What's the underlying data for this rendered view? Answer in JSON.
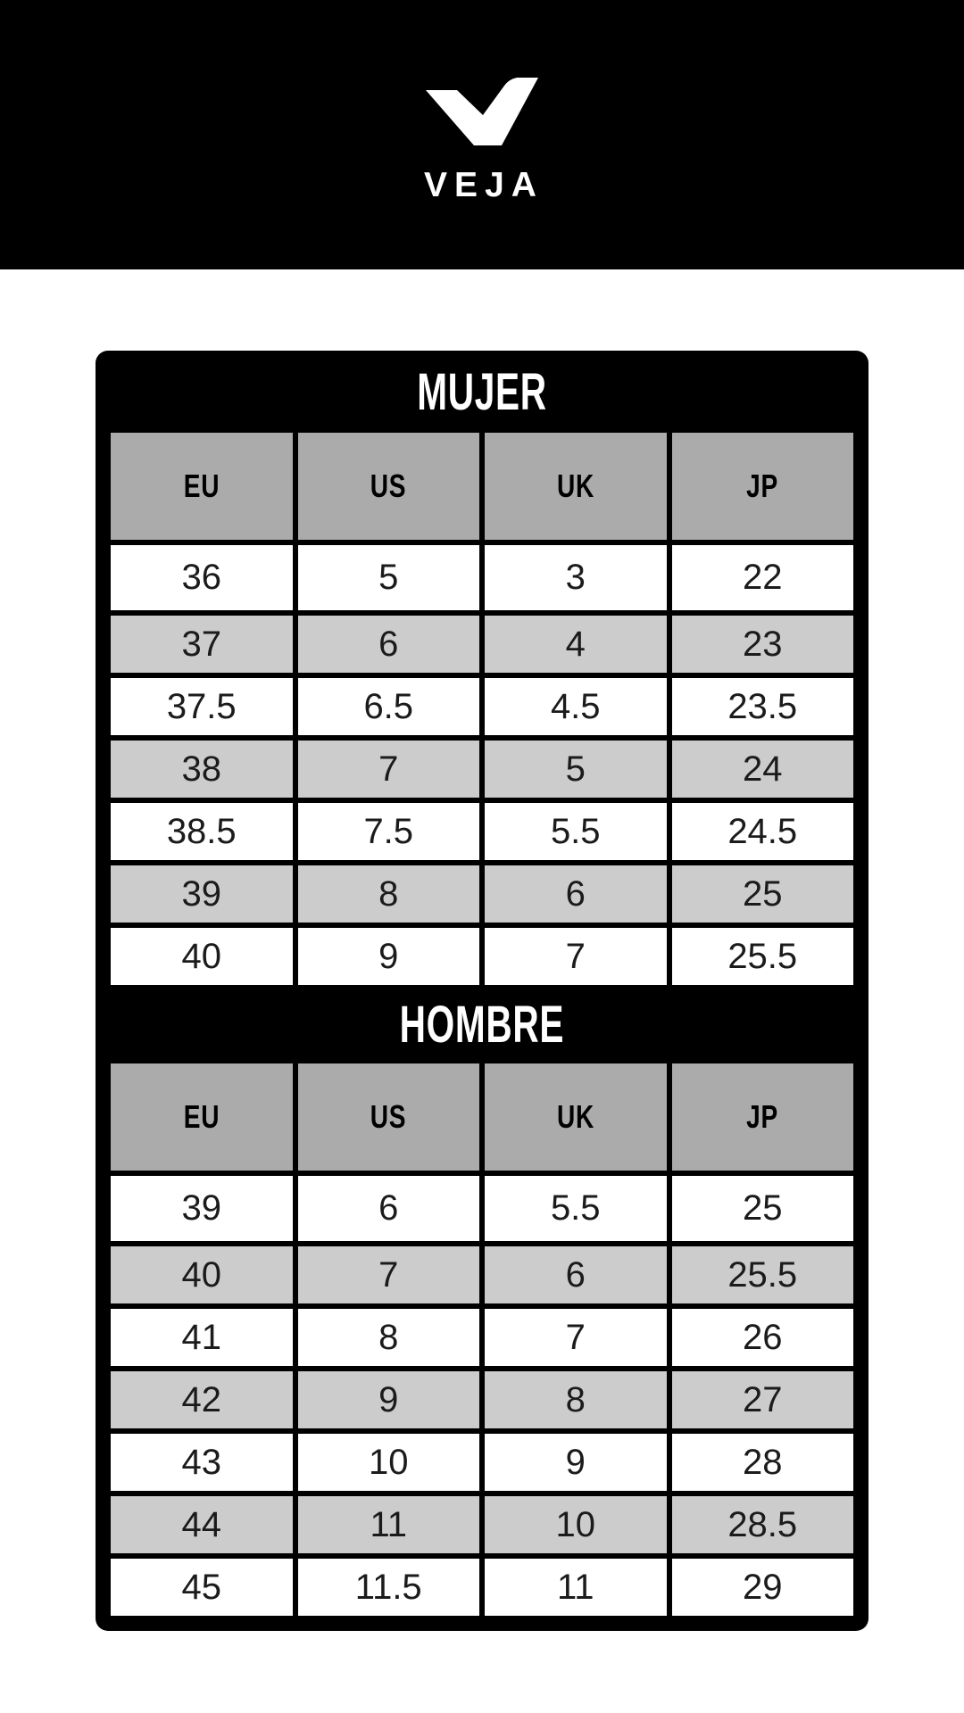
{
  "brand": {
    "wordmark": "VEJA",
    "logo_icon": "veja-v-checkmark-icon"
  },
  "size_chart": {
    "tables": [
      {
        "title": "MUJER",
        "columns": [
          "EU",
          "US",
          "UK",
          "JP"
        ],
        "rows": [
          [
            "36",
            "5",
            "3",
            "22"
          ],
          [
            "37",
            "6",
            "4",
            "23"
          ],
          [
            "37.5",
            "6.5",
            "4.5",
            "23.5"
          ],
          [
            "38",
            "7",
            "5",
            "24"
          ],
          [
            "38.5",
            "7.5",
            "5.5",
            "24.5"
          ],
          [
            "39",
            "8",
            "6",
            "25"
          ],
          [
            "40",
            "9",
            "7",
            "25.5"
          ]
        ]
      },
      {
        "title": "HOMBRE",
        "columns": [
          "EU",
          "US",
          "UK",
          "JP"
        ],
        "rows": [
          [
            "39",
            "6",
            "5.5",
            "25"
          ],
          [
            "40",
            "7",
            "6",
            "25.5"
          ],
          [
            "41",
            "8",
            "7",
            "26"
          ],
          [
            "42",
            "9",
            "8",
            "27"
          ],
          [
            "43",
            "10",
            "9",
            "28"
          ],
          [
            "44",
            "11",
            "10",
            "28.5"
          ],
          [
            "45",
            "11.5",
            "11",
            "29"
          ]
        ]
      }
    ]
  },
  "colors": {
    "page_bg": "#FFFFFF",
    "band_bg": "#000000",
    "card_bg": "#000000",
    "column_header_bg": "#ABABAB",
    "row_bg": "#FFFFFF",
    "row_alt_bg": "#CCCCCC",
    "title_text": "#FFFFFF",
    "cell_text": "#1B1B1B"
  }
}
